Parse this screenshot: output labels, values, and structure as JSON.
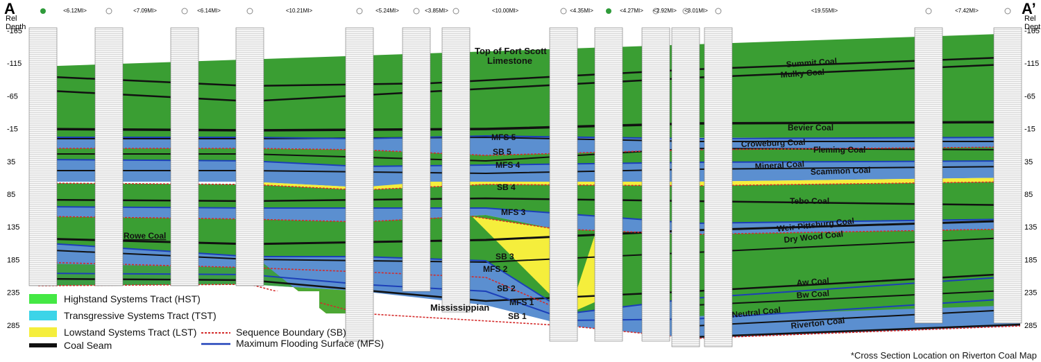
{
  "section": {
    "end_left": "A",
    "end_right": "A’",
    "axis_title_line1": "Rel",
    "axis_title_line2": "Depth",
    "depth_ticks": [
      "-165",
      "-115",
      "-65",
      "-15",
      "35",
      "85",
      "135",
      "185",
      "235",
      "285"
    ],
    "spacing_labels": [
      "<6.12MI>",
      "<7.09MI>",
      "<6.14MI>",
      "<10.21MI>",
      "<5.24MI>",
      "<3.85MI>",
      "<10.00MI>",
      "<4.35MI>",
      "<4.27MI>",
      "<2.92MI>",
      "<3.01MI>",
      "<19.55MI>",
      "<7.42MI>"
    ]
  },
  "labels": {
    "top_fort_scott_1": "Top of Fort Scott",
    "top_fort_scott_2": "Limestone",
    "summit": "Summit Coal",
    "mulky": "Mulky Coal",
    "bevier": "Bevier Coal",
    "croweburg": "Croweburg Coal",
    "fleming": "Fleming Coal",
    "mineral": "Mineral Coal",
    "scammon": "Scammon Coal",
    "tebo": "Tebo Coal",
    "weir": "Weir-Pittsburg Coal",
    "drywood": "Dry Wood Coal",
    "rowe": "Rowe Coal",
    "aw": "Aw Coal",
    "bw": "Bw Coal",
    "neutral": "Neutral Coal",
    "riverton": "Riverton Coal",
    "mississippian": "Mississippian",
    "mfs5": "MFS 5",
    "sb5": "SB 5",
    "mfs4": "MFS 4",
    "sb4": "SB 4",
    "mfs3": "MFS 3",
    "sb3": "SB 3",
    "mfs2": "MFS 2",
    "sb2": "SB 2",
    "mfs1": "MFS 1",
    "sb1": "SB 1"
  },
  "legend": {
    "hst": "Highstand Systems Tract (HST)",
    "tst": "Transgressive Systems Tract (TST)",
    "lst": "Lowstand Systems Tract (LST)",
    "coal": "Coal Seam",
    "sb": "Sequence Boundary (SB)",
    "mfs": "Maximum Flooding Surface (MFS)"
  },
  "colors": {
    "hst": "#3a9e33",
    "tst": "#5b8fd0",
    "lst": "#f5ee3c",
    "coal": "#111111",
    "sb": "#d42a2a",
    "mfs": "#1c3fb8",
    "log_track": "#f3f3f3"
  },
  "footnote": "*Cross Section Location on Riverton Coal Map"
}
